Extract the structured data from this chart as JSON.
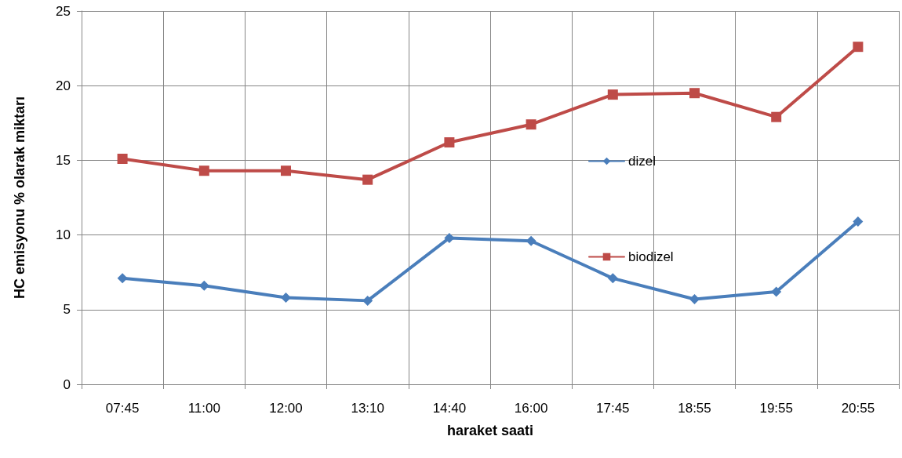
{
  "chart_data": {
    "type": "line",
    "xlabel": "haraket saati",
    "ylabel": "HC emisyonu % olarak miktarı",
    "categories": [
      "07:45",
      "11:00",
      "12:00",
      "13:10",
      "14:40",
      "16:00",
      "17:45",
      "18:55",
      "19:55",
      "20:55"
    ],
    "series": [
      {
        "name": "dizel",
        "color": "#4a7ebb",
        "marker": "diamond",
        "values": [
          7.1,
          6.6,
          5.8,
          5.6,
          9.8,
          9.6,
          7.1,
          5.7,
          6.2,
          10.9
        ]
      },
      {
        "name": "biodizel",
        "color": "#be4b48",
        "marker": "square",
        "values": [
          15.1,
          14.3,
          14.3,
          13.7,
          16.2,
          17.4,
          19.4,
          19.5,
          17.9,
          22.6
        ]
      }
    ],
    "ylim": [
      0,
      25
    ],
    "yticks": [
      0,
      5,
      10,
      15,
      20,
      25
    ],
    "grid": true,
    "legend": "right",
    "line_style": "solid"
  }
}
